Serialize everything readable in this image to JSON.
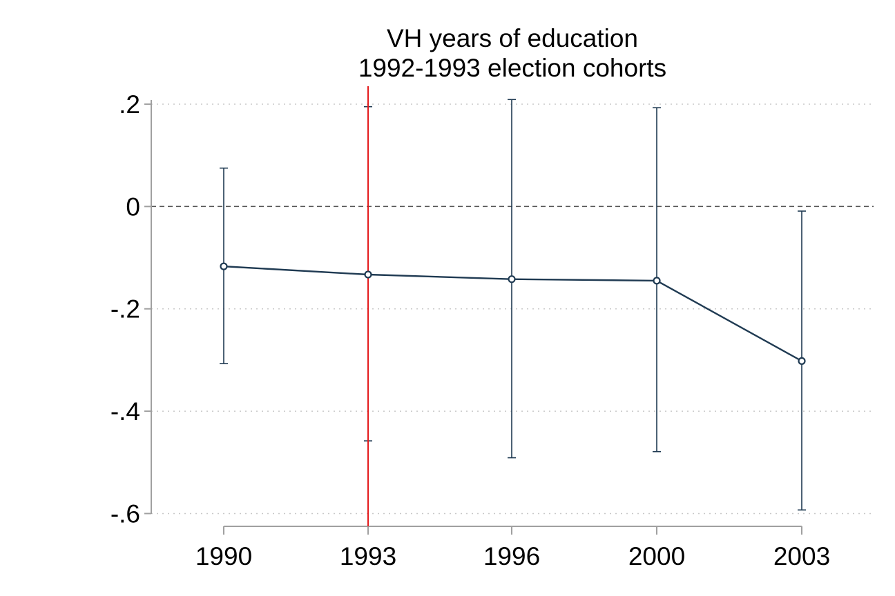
{
  "chart_data": {
    "type": "line",
    "title": [
      "VH years of education",
      "1992-1993 election cohorts"
    ],
    "xlabel": "",
    "ylabel": "",
    "categories": [
      "1990",
      "1993",
      "1996",
      "2000",
      "2003"
    ],
    "yticks": [
      ".2",
      "0",
      "-.2",
      "-.4",
      "-.6"
    ],
    "ytick_values": [
      0.2,
      0,
      -0.2,
      -0.4,
      -0.6
    ],
    "ylim": [
      -0.625,
      0.235
    ],
    "grid": true,
    "reference_line_y": 0,
    "event_line_category": "1993",
    "event_line_color": "#e41a1c",
    "series_color": "#1f3a52",
    "series": [
      {
        "values": [
          -0.117,
          -0.133,
          -0.142,
          -0.145,
          -0.302
        ],
        "ci_lower": [
          -0.307,
          -0.458,
          -0.491,
          -0.479,
          -0.593
        ],
        "ci_upper": [
          0.075,
          0.195,
          0.209,
          0.193,
          -0.009
        ]
      }
    ]
  }
}
